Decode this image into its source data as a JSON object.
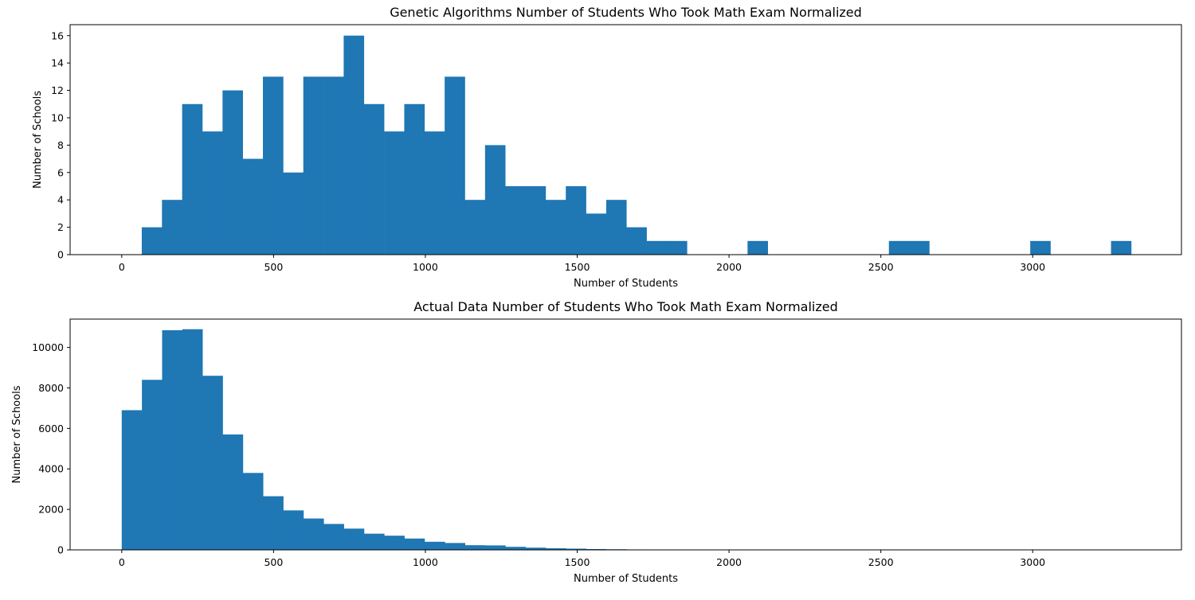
{
  "colors": {
    "bar": "#1f77b4",
    "axis": "#000000",
    "background": "#ffffff"
  },
  "chart_data": [
    {
      "type": "bar",
      "subtype": "histogram",
      "title": "Genetic Algorithms Number of Students Who Took Math Exam Normalized",
      "xlabel": "Number of Students",
      "ylabel": "Number of Schools",
      "xlim": [
        -170,
        3490
      ],
      "ylim": [
        0,
        16.8
      ],
      "xticks": [
        0,
        500,
        1000,
        1500,
        2000,
        2500,
        3000
      ],
      "yticks": [
        0,
        2,
        4,
        6,
        8,
        10,
        12,
        14,
        16
      ],
      "bin_width": 66.5,
      "bin_starts": [
        66,
        132.5,
        199,
        265.5,
        332,
        398.5,
        465,
        531.5,
        598,
        664.5,
        731,
        797.5,
        864,
        930.5,
        997,
        1063.5,
        1130,
        1196.5,
        1263,
        1329.5,
        1396,
        1462.5,
        1529,
        1595.5,
        1662,
        1728.5,
        1795,
        2061,
        2526.5,
        2593,
        2992,
        3258
      ],
      "values": [
        2,
        4,
        11,
        9,
        12,
        7,
        13,
        6,
        13,
        13,
        16,
        11,
        9,
        11,
        9,
        13,
        4,
        8,
        5,
        5,
        4,
        5,
        3,
        4,
        2,
        1,
        1,
        1,
        1,
        1,
        1,
        1
      ],
      "grid": false
    },
    {
      "type": "bar",
      "subtype": "histogram",
      "title": "Actual Data Number of Students Who Took Math Exam Normalized",
      "xlabel": "Number of Students",
      "ylabel": "Number of Schools",
      "xlim": [
        -170,
        3490
      ],
      "ylim": [
        0,
        11400
      ],
      "xticks": [
        0,
        500,
        1000,
        1500,
        2000,
        2500,
        3000
      ],
      "yticks": [
        0,
        2000,
        4000,
        6000,
        8000,
        10000
      ],
      "bin_width": 66.5,
      "bin_starts": [
        0,
        66.5,
        133,
        199.5,
        266,
        332.5,
        399,
        465.5,
        532,
        598.5,
        665,
        731.5,
        798,
        864.5,
        931,
        997.5,
        1064,
        1130.5,
        1197,
        1263.5,
        1330,
        1396.5,
        1463,
        1529.5,
        1596,
        1662.5,
        1729,
        1795.5
      ],
      "values": [
        6900,
        8400,
        10850,
        10900,
        8600,
        5700,
        3800,
        2650,
        1950,
        1550,
        1280,
        1050,
        800,
        700,
        560,
        400,
        340,
        230,
        220,
        150,
        110,
        80,
        60,
        40,
        30,
        20,
        15,
        10
      ],
      "grid": false
    }
  ]
}
